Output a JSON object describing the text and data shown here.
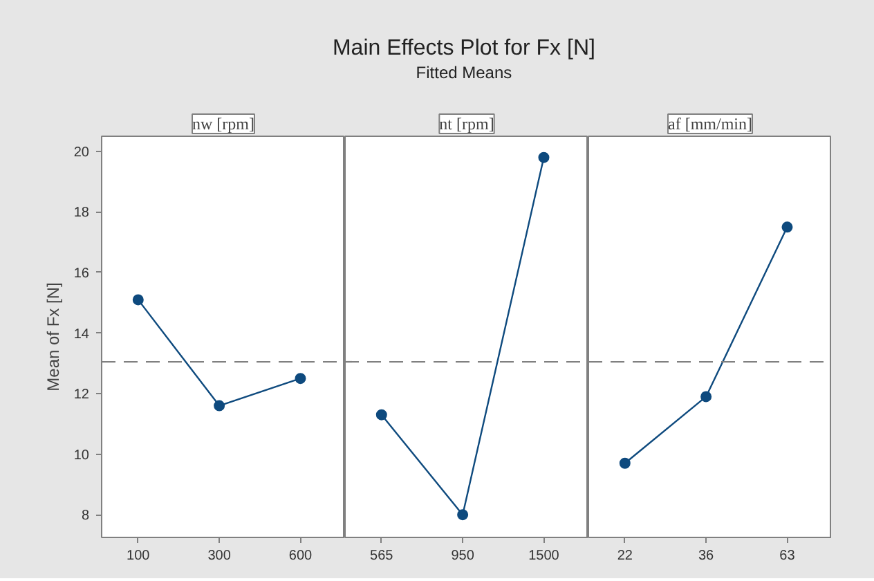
{
  "chart_data": [
    {
      "type": "other",
      "title": "Main Effects Plot for Fx [N]",
      "subtitle": "Fitted Means"
    },
    {
      "type": "line",
      "xlabel": "nw [rpm]",
      "ylabel": "Mean of Fx [N]",
      "categories": [
        "100",
        "300",
        "600"
      ],
      "series": [
        {
          "color": "#0e4a7e",
          "values": [
            15.1,
            11.6,
            12.5
          ]
        }
      ],
      "ylim": [
        7.25,
        20.5
      ],
      "yticks": [
        8,
        10,
        12,
        14,
        16,
        18,
        20
      ],
      "ref_lines": [
        {
          "axis": "y",
          "value": 13.05,
          "color": "#808080",
          "line_style": "dashed"
        }
      ],
      "marker": "circle",
      "line_style": "solid"
    },
    {
      "type": "line",
      "xlabel": "nt [rpm]",
      "categories": [
        "565",
        "950",
        "1500"
      ],
      "series": [
        {
          "color": "#0e4a7e",
          "values": [
            11.3,
            8.0,
            19.8
          ]
        }
      ],
      "ylim": [
        7.25,
        20.5
      ],
      "yticks": [
        8,
        10,
        12,
        14,
        16,
        18,
        20
      ],
      "tick_labels": "x",
      "ref_lines": [
        {
          "axis": "y",
          "value": 13.05,
          "color": "#808080",
          "line_style": "dashed"
        }
      ],
      "marker": "circle",
      "line_style": "solid"
    },
    {
      "type": "line",
      "xlabel": "af [mm/min]",
      "categories": [
        "22",
        "36",
        "63"
      ],
      "series": [
        {
          "color": "#0e4a7e",
          "values": [
            9.7,
            11.9,
            17.5
          ]
        }
      ],
      "ylim": [
        7.25,
        20.5
      ],
      "yticks": [
        8,
        10,
        12,
        14,
        16,
        18,
        20
      ],
      "tick_labels": "x",
      "ref_lines": [
        {
          "axis": "y",
          "value": 13.05,
          "color": "#808080",
          "line_style": "dashed"
        }
      ],
      "marker": "circle",
      "line_style": "solid"
    }
  ]
}
